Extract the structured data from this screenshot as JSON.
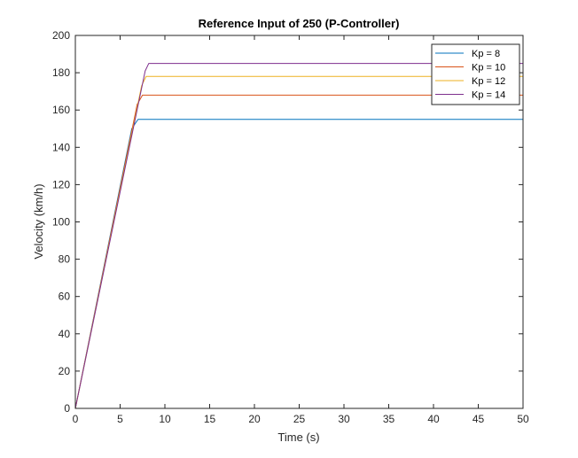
{
  "chart_data": {
    "type": "line",
    "title": "Reference Input of 250 (P-Controller)",
    "xlabel": "Time (s)",
    "ylabel": "Velocity (km/h)",
    "xlim": [
      0,
      50
    ],
    "ylim": [
      0,
      200
    ],
    "xticks": [
      "0",
      "5",
      "10",
      "15",
      "20",
      "25",
      "30",
      "35",
      "40",
      "45",
      "50"
    ],
    "yticks": [
      "0",
      "20",
      "40",
      "60",
      "80",
      "100",
      "120",
      "140",
      "160",
      "180",
      "200"
    ],
    "grid": false,
    "legend_position": "top-right",
    "series": [
      {
        "name": "Kp = 8",
        "color": "#0072BD",
        "x": [
          0,
          6.3,
          7.0,
          50
        ],
        "y": [
          0,
          150,
          155,
          155
        ]
      },
      {
        "name": "Kp = 10",
        "color": "#D95319",
        "x": [
          0,
          6.9,
          7.5,
          50
        ],
        "y": [
          0,
          163,
          168,
          168
        ]
      },
      {
        "name": "Kp = 12",
        "color": "#EDB120",
        "x": [
          0,
          7.4,
          7.9,
          50
        ],
        "y": [
          0,
          173,
          178,
          178
        ]
      },
      {
        "name": "Kp = 14",
        "color": "#7E2F8E",
        "x": [
          0,
          7.8,
          8.2,
          50
        ],
        "y": [
          0,
          181,
          185,
          185
        ]
      }
    ]
  }
}
